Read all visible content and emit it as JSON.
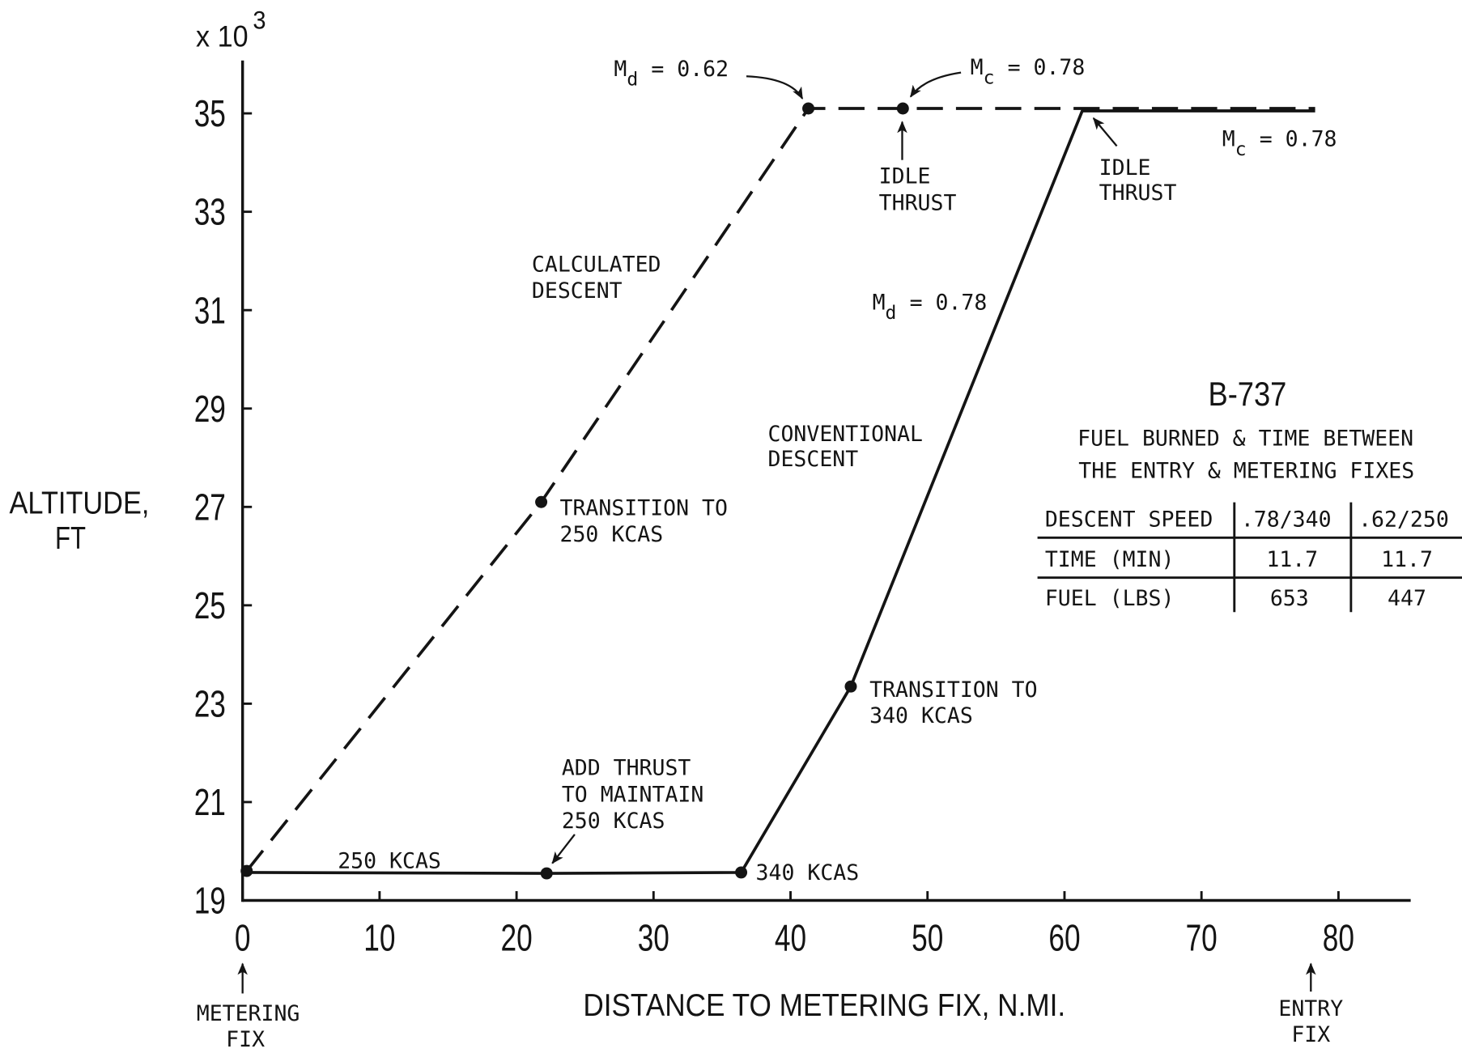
{
  "chart_data": {
    "type": "line",
    "title": "B-737",
    "xlabel": "DISTANCE TO METERING FIX, N.MI.",
    "ylabel_lines": [
      "ALTITUDE,",
      "FT"
    ],
    "y_scale": {
      "base": "x 10",
      "exp": "3"
    },
    "xlim": [
      0,
      85
    ],
    "ylim": [
      19,
      36
    ],
    "grid": false,
    "x_ticks": [
      0,
      10,
      20,
      30,
      40,
      50,
      60,
      70,
      80
    ],
    "y_ticks": [
      19,
      21,
      23,
      25,
      27,
      29,
      31,
      33,
      35
    ],
    "series": [
      {
        "label_lines": [
          "CALCULATED",
          "DESCENT"
        ],
        "line_style": "dashed",
        "x": [
          0.3,
          21.8,
          41.3,
          78.3
        ],
        "y": [
          19.6,
          27.1,
          35.1,
          35.1
        ]
      },
      {
        "label_lines": [
          "CONVENTIONAL",
          "DESCENT"
        ],
        "line_style": "solid",
        "x": [
          0.2,
          22.2,
          36.4,
          44.4,
          61.3,
          78.3
        ],
        "y": [
          19.57,
          19.55,
          19.57,
          23.35,
          35.05,
          35.05
        ]
      }
    ],
    "points": [
      {
        "x": 0.3,
        "y": 19.6
      },
      {
        "x": 21.8,
        "y": 27.1
      },
      {
        "x": 41.3,
        "y": 35.1
      },
      {
        "x": 48.2,
        "y": 35.1
      },
      {
        "x": 22.2,
        "y": 19.55
      },
      {
        "x": 36.4,
        "y": 19.57
      },
      {
        "x": 44.4,
        "y": 23.35
      }
    ],
    "mach_labels": [
      {
        "symbol": "M",
        "sub": "d",
        "value": "= 0.62"
      },
      {
        "symbol": "M",
        "sub": "c",
        "value": "= 0.78"
      },
      {
        "symbol": "M",
        "sub": "c",
        "value": "= 0.78"
      },
      {
        "symbol": "M",
        "sub": "d",
        "value": "= 0.78"
      }
    ],
    "annotations": {
      "idle_thrust_top": [
        "IDLE",
        "THRUST"
      ],
      "idle_thrust_right": [
        "IDLE",
        "THRUST"
      ],
      "transition_250": [
        "TRANSITION TO",
        "250 KCAS"
      ],
      "transition_340": [
        "TRANSITION TO",
        "340 KCAS"
      ],
      "add_thrust": [
        "ADD THRUST",
        "TO MAINTAIN",
        "250 KCAS"
      ],
      "kcas_250": "250 KCAS",
      "kcas_340": "340 KCAS"
    },
    "x_axis_markers": {
      "metering_fix": [
        "METERING",
        "FIX"
      ],
      "entry_fix": [
        "ENTRY",
        "FIX"
      ]
    },
    "table": {
      "caption_lines": [
        "FUEL BURNED & TIME BETWEEN",
        "THE ENTRY & METERING FIXES"
      ],
      "header": [
        "DESCENT SPEED",
        ".78/340",
        ".62/250"
      ],
      "rows": [
        [
          "TIME (MIN)",
          "11.7",
          "11.7"
        ],
        [
          "FUEL (LBS)",
          "653",
          "447"
        ]
      ]
    }
  }
}
